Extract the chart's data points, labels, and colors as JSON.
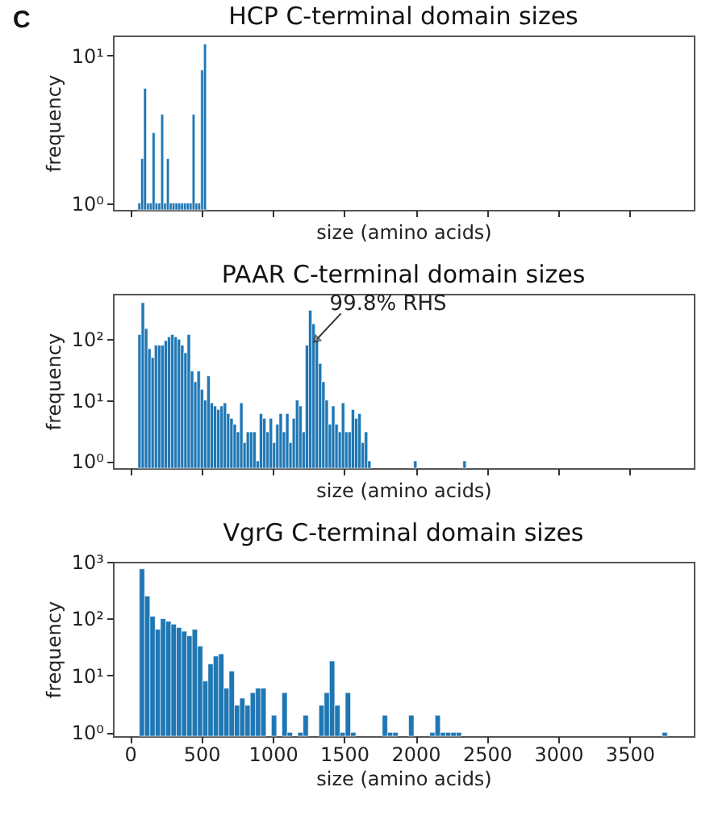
{
  "chart_data": [
    {
      "type": "histogram",
      "title": "HCP C-terminal domain sizes",
      "xlabel": "size (amino acids)",
      "ylabel": "frequency",
      "annotations": [
        "C"
      ],
      "color": "#1f77b4",
      "log": "y",
      "grid": false,
      "tick_labels": "y",
      "xlim": [
        -120,
        3950
      ],
      "xticks": [
        0,
        500,
        1000,
        1500,
        2000,
        2500,
        3000,
        3500
      ],
      "ylim": [
        0.9,
        13.7
      ],
      "yticks": [
        {
          "value": 1,
          "label": "10⁰"
        },
        {
          "value": 10,
          "label": "10¹"
        }
      ],
      "bins": [
        55,
        75,
        95,
        115,
        135,
        155,
        175,
        195,
        215,
        235,
        255,
        275,
        295,
        315,
        335,
        355,
        375,
        395,
        415,
        435,
        455,
        475,
        495,
        515,
        535
      ],
      "values": [
        1,
        2,
        6,
        1,
        1,
        3,
        1,
        1,
        4,
        1,
        2,
        1,
        1,
        1,
        1,
        1,
        1,
        1,
        1,
        4,
        1,
        1,
        8,
        12
      ]
    },
    {
      "type": "histogram",
      "title": "PAAR C-terminal domain sizes",
      "xlabel": "size (amino acids)",
      "ylabel": "frequency",
      "annotations": [
        {
          "text": "99.8% RHS",
          "x": 1308,
          "y": 100
        }
      ],
      "color": "#1f77b4",
      "log": "y",
      "grid": false,
      "tick_labels": "y",
      "xlim": [
        -120,
        3950
      ],
      "xticks": [
        0,
        500,
        1000,
        1500,
        2000,
        2500,
        3000,
        3500
      ],
      "ylim": [
        0.76,
        560
      ],
      "yticks": [
        {
          "value": 1,
          "label": "10⁰"
        },
        {
          "value": 10,
          "label": "10¹"
        },
        {
          "value": 100,
          "label": "10²"
        }
      ],
      "bins": [
        55,
        78,
        101,
        124,
        147,
        170,
        193,
        216,
        239,
        262,
        285,
        308,
        331,
        354,
        377,
        400,
        423,
        446,
        469,
        492,
        515,
        538,
        561,
        584,
        607,
        630,
        653,
        676,
        699,
        722,
        745,
        768,
        791,
        814,
        837,
        860,
        883,
        906,
        929,
        952,
        975,
        998,
        1021,
        1044,
        1067,
        1090,
        1113,
        1136,
        1159,
        1182,
        1205,
        1228,
        1251,
        1274,
        1297,
        1320,
        1343,
        1366,
        1389,
        1412,
        1435,
        1458,
        1481,
        1504,
        1527,
        1550,
        1573,
        1596,
        1619,
        1642,
        1665,
        1688,
        1711,
        1734,
        1757,
        1780,
        1803,
        1826,
        1849,
        1872,
        1895,
        1918,
        1941,
        1964,
        1987,
        2010,
        2033,
        2056,
        2079,
        2102,
        2125,
        2148,
        2171,
        2194,
        2217,
        2240,
        2263,
        2286,
        2309,
        2332,
        2355
      ],
      "values": [
        120,
        400,
        150,
        70,
        50,
        80,
        80,
        80,
        95,
        110,
        120,
        110,
        100,
        80,
        60,
        120,
        30,
        20,
        30,
        15,
        10,
        25,
        9,
        8,
        7,
        8,
        9,
        6,
        5,
        4,
        3,
        9,
        2,
        3,
        3,
        3,
        1,
        6,
        5,
        3,
        5,
        2,
        4,
        6,
        3,
        6,
        2,
        5,
        10,
        8,
        3,
        80,
        300,
        180,
        100,
        40,
        20,
        10,
        4,
        8,
        4,
        3,
        9,
        3,
        3,
        7,
        5,
        6,
        2,
        3,
        1,
        null,
        null,
        null,
        null,
        null,
        null,
        null,
        null,
        null,
        null,
        null,
        null,
        null,
        1,
        null,
        null,
        null,
        null,
        null,
        null,
        null,
        null,
        null,
        null,
        null,
        null,
        null,
        null,
        1
      ]
    },
    {
      "type": "histogram",
      "title": "VgrG C-terminal domain sizes",
      "xlabel": "size (amino acids)",
      "ylabel": "frequency",
      "color": "#1f77b4",
      "log": "y",
      "grid": false,
      "xlim": [
        -120,
        3950
      ],
      "xticks": [
        0,
        500,
        1000,
        1500,
        2000,
        2500,
        3000,
        3500
      ],
      "ylim": [
        0.86,
        1000
      ],
      "yticks": [
        {
          "value": 1,
          "label": "10⁰"
        },
        {
          "value": 10,
          "label": "10¹"
        },
        {
          "value": 100,
          "label": "10²"
        },
        {
          "value": 1000,
          "label": "10³"
        }
      ],
      "bins": [
        65,
        102,
        139,
        176,
        213,
        250,
        287,
        324,
        361,
        398,
        435,
        472,
        509,
        546,
        583,
        620,
        657,
        694,
        731,
        768,
        805,
        842,
        879,
        916,
        953,
        990,
        1027,
        1064,
        1101,
        1138,
        1175,
        1212,
        1249,
        1286,
        1323,
        1360,
        1397,
        1434,
        1471,
        1508,
        1545,
        1582,
        1619,
        1656,
        1693,
        1730,
        1767,
        1804,
        1841,
        1878,
        1915,
        1952,
        1989,
        2026,
        2063,
        2100,
        2137,
        2174,
        2211,
        2248,
        2285,
        2322,
        2359,
        2396,
        2433,
        2470,
        2507,
        2544,
        2581,
        2618,
        2655,
        2692,
        2729,
        2766,
        2803,
        2840,
        2877,
        2914,
        2951,
        2988,
        3025,
        3062,
        3099,
        3136,
        3173,
        3210,
        3247,
        3284,
        3321,
        3358,
        3395,
        3432,
        3469,
        3506,
        3543,
        3580,
        3617,
        3654,
        3691,
        3728,
        3765
      ],
      "values": [
        750,
        250,
        110,
        65,
        100,
        90,
        80,
        70,
        60,
        50,
        65,
        33,
        8,
        16,
        22,
        24,
        6,
        12,
        3,
        4,
        3,
        5,
        6,
        6,
        null,
        2,
        null,
        5,
        1,
        null,
        1,
        2,
        null,
        null,
        3,
        5,
        18,
        3,
        1,
        5,
        1,
        null,
        null,
        null,
        null,
        null,
        2,
        1,
        1,
        null,
        null,
        2,
        null,
        null,
        null,
        1,
        2,
        1,
        1,
        1,
        1,
        null,
        null,
        null,
        null,
        null,
        null,
        null,
        null,
        null,
        null,
        null,
        null,
        null,
        null,
        null,
        null,
        null,
        null,
        null,
        null,
        null,
        null,
        null,
        null,
        null,
        null,
        null,
        null,
        null,
        null,
        null,
        null,
        null,
        null,
        null,
        null,
        null,
        null,
        1
      ]
    }
  ]
}
